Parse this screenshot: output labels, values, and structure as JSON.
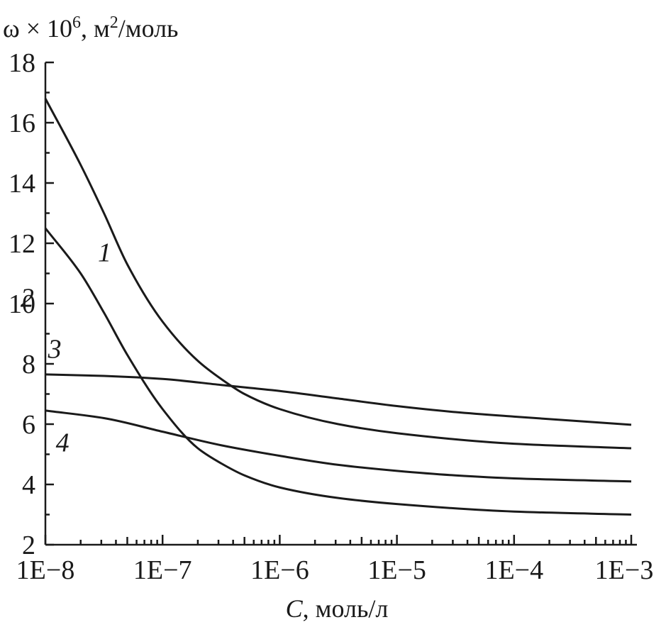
{
  "chart_data": {
    "type": "line",
    "ylabel_prefix": "ω × 10",
    "ylabel_exp": "6",
    "ylabel_unit": ", м",
    "ylabel_unit_exp": "2",
    "ylabel_suffix": "/моль",
    "xlabel_var": "C",
    "xlabel_rest": ", моль/л",
    "x_scale": "log",
    "xlim": [
      1e-08,
      0.001
    ],
    "ylim": [
      2,
      18
    ],
    "x_ticks": [
      "1E−8",
      "1E−7",
      "1E−6",
      "1E−5",
      "1E−4",
      "1E−3"
    ],
    "y_ticks": [
      "2",
      "4",
      "6",
      "8",
      "10",
      "12",
      "14",
      "16",
      "18"
    ],
    "grid": false,
    "series": [
      {
        "label": "1",
        "x": [
          1e-08,
          2e-08,
          3.16e-08,
          5e-08,
          1e-07,
          2e-07,
          3.16e-07,
          5e-07,
          1e-06,
          3.16e-06,
          1e-05,
          0.0001,
          0.001
        ],
        "y": [
          16.8,
          14.6,
          13.0,
          11.3,
          9.4,
          8.1,
          7.5,
          7.0,
          6.5,
          6.0,
          5.7,
          5.35,
          5.2
        ]
      },
      {
        "label": "2",
        "x": [
          1e-08,
          2e-08,
          3.16e-08,
          5e-08,
          1e-07,
          2e-07,
          3.16e-07,
          5e-07,
          1e-06,
          3.16e-06,
          1e-05,
          0.0001,
          0.001
        ],
        "y": [
          12.5,
          11.0,
          9.7,
          8.3,
          6.5,
          5.2,
          4.7,
          4.3,
          3.9,
          3.55,
          3.35,
          3.1,
          3.0
        ]
      },
      {
        "label": "3",
        "x": [
          1e-08,
          3.16e-08,
          1e-07,
          3.16e-07,
          1e-06,
          3.16e-06,
          1e-05,
          3.16e-05,
          0.0001,
          0.001
        ],
        "y": [
          7.65,
          7.6,
          7.5,
          7.3,
          7.1,
          6.85,
          6.6,
          6.4,
          6.25,
          5.98
        ]
      },
      {
        "label": "4",
        "x": [
          1e-08,
          3.16e-08,
          1e-07,
          3.16e-07,
          1e-06,
          3.16e-06,
          1e-05,
          3.16e-05,
          0.0001,
          0.001
        ],
        "y": [
          6.45,
          6.2,
          5.75,
          5.3,
          4.95,
          4.65,
          4.45,
          4.3,
          4.2,
          4.1
        ]
      }
    ]
  }
}
